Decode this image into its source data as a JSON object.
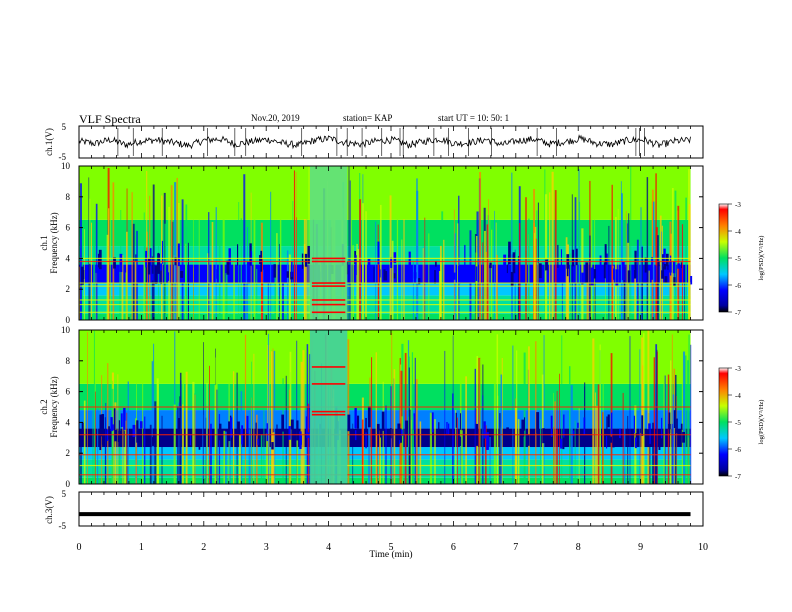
{
  "header": {
    "title": "VLF Spectra",
    "date": "Nov.20, 2019",
    "station": "station= KAP",
    "start": "start  UT =   10: 50: 1"
  },
  "chart_data": [
    {
      "type": "line",
      "panel": "ch1-waveform",
      "ylabel": "ch.1(V)",
      "ylim": [
        -5,
        5
      ],
      "yticks": [
        "5",
        "-5"
      ],
      "xlim": [
        0,
        10
      ],
      "description_values": "noisy waveform fluctuating between about -2 and 2 V",
      "y_samples": [
        0.4,
        -0.8,
        1.2,
        -1.5,
        0.6,
        1.0,
        -0.3,
        -1.9,
        0.9,
        1.6,
        -1.1,
        0.2,
        1.4,
        -0.6,
        -1.7,
        0.8,
        1.9,
        -0.4,
        -1.2,
        0.5,
        1.1,
        -1.6,
        0.3,
        1.7,
        -0.9,
        -0.2,
        1.3,
        -1.4,
        0.7,
        1.5,
        -1.0,
        0.1,
        1.8,
        -0.7,
        -1.3,
        0.9,
        1.2,
        -1.8,
        0.4,
        1.0
      ]
    },
    {
      "type": "heatmap",
      "panel": "ch1-spectrogram",
      "ylabel": "ch.1 Frequency (kHz)",
      "ylim": [
        0,
        10
      ],
      "yticks": [
        "0",
        "2",
        "4",
        "6",
        "8",
        "10"
      ],
      "xlim": [
        0,
        10
      ],
      "colorbar": {
        "label": "log(PSD)(V²/Hz)",
        "ticks": [
          "-3",
          "-4",
          "-5",
          "-6",
          "-7"
        ],
        "range": [
          -7,
          -3
        ]
      },
      "features": {
        "gap_minutes": [
          3.7,
          4.3
        ],
        "horizontal_lines_khz": [
          0.5,
          1.0,
          1.3,
          2.2,
          2.4,
          3.8,
          4.0
        ]
      }
    },
    {
      "type": "heatmap",
      "panel": "ch2-spectrogram",
      "ylabel": "ch.2 Frequency (kHz)",
      "ylim": [
        0,
        10
      ],
      "yticks": [
        "0",
        "2",
        "4",
        "6",
        "8",
        "10"
      ],
      "xlim": [
        0,
        10
      ],
      "colorbar": {
        "label": "log(PSD)(V²/Hz)",
        "ticks": [
          "-3",
          "-4",
          "-5",
          "-6",
          "-7"
        ],
        "range": [
          -7,
          -3
        ]
      },
      "features": {
        "gap_minutes": [
          3.7,
          4.3
        ],
        "horizontal_lines_khz": [
          4.5,
          4.7,
          6.5,
          7.6
        ]
      }
    },
    {
      "type": "line",
      "panel": "ch3-waveform",
      "ylabel": "ch.3(V)",
      "ylim": [
        -5,
        5
      ],
      "yticks": [
        "5",
        "-5"
      ],
      "xlim": [
        0,
        10
      ],
      "y_constant": -1.5
    }
  ],
  "xaxis": {
    "label": "Time  (min)",
    "ticks": [
      "0",
      "1",
      "2",
      "3",
      "4",
      "5",
      "6",
      "7",
      "8",
      "9",
      "10"
    ]
  },
  "colors": {
    "spec_low": "#00008b",
    "spec_mid": "#00e060",
    "spec_high": "#ff0000"
  }
}
